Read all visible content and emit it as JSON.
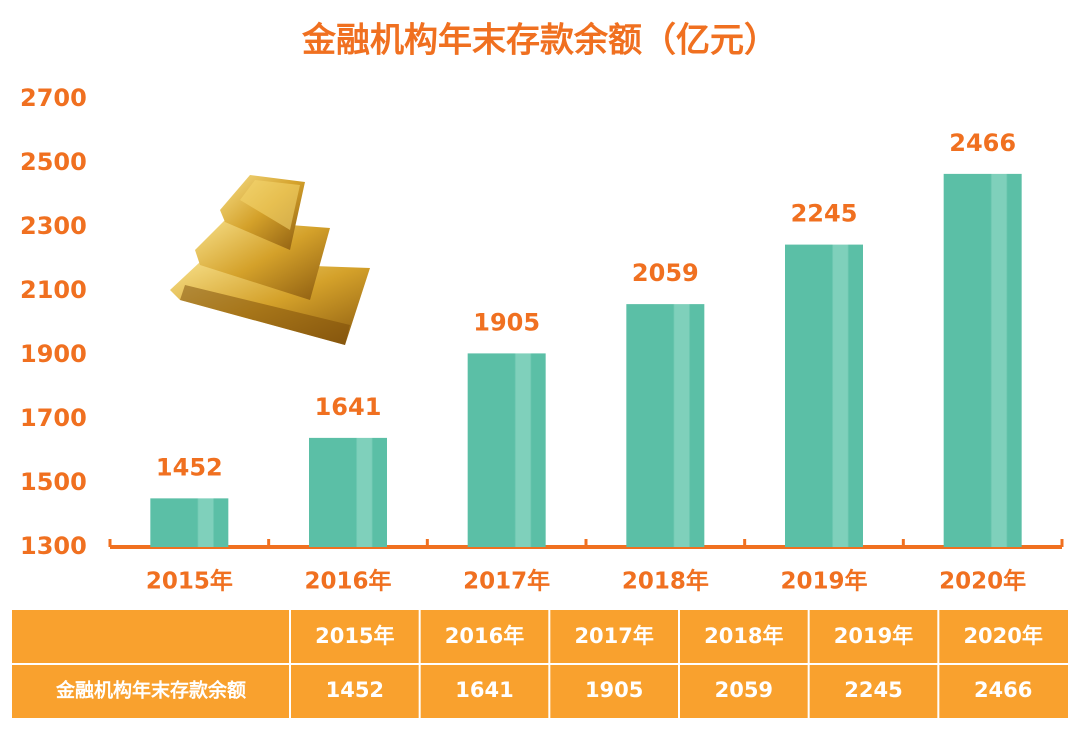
{
  "chart_data": {
    "type": "bar",
    "title": "金融机构年末存款余额（亿元）",
    "categories": [
      "2015年",
      "2016年",
      "2017年",
      "2018年",
      "2019年",
      "2020年"
    ],
    "values": [
      1452,
      1641,
      1905,
      2059,
      2245,
      2466
    ],
    "color": "#5bbfa6",
    "ylim": [
      1300,
      2700
    ],
    "yticks": [
      1300,
      1500,
      1700,
      1900,
      2100,
      2300,
      2500,
      2700
    ],
    "grid": false
  },
  "table": {
    "row_label": "金融机构年末存款余额"
  }
}
